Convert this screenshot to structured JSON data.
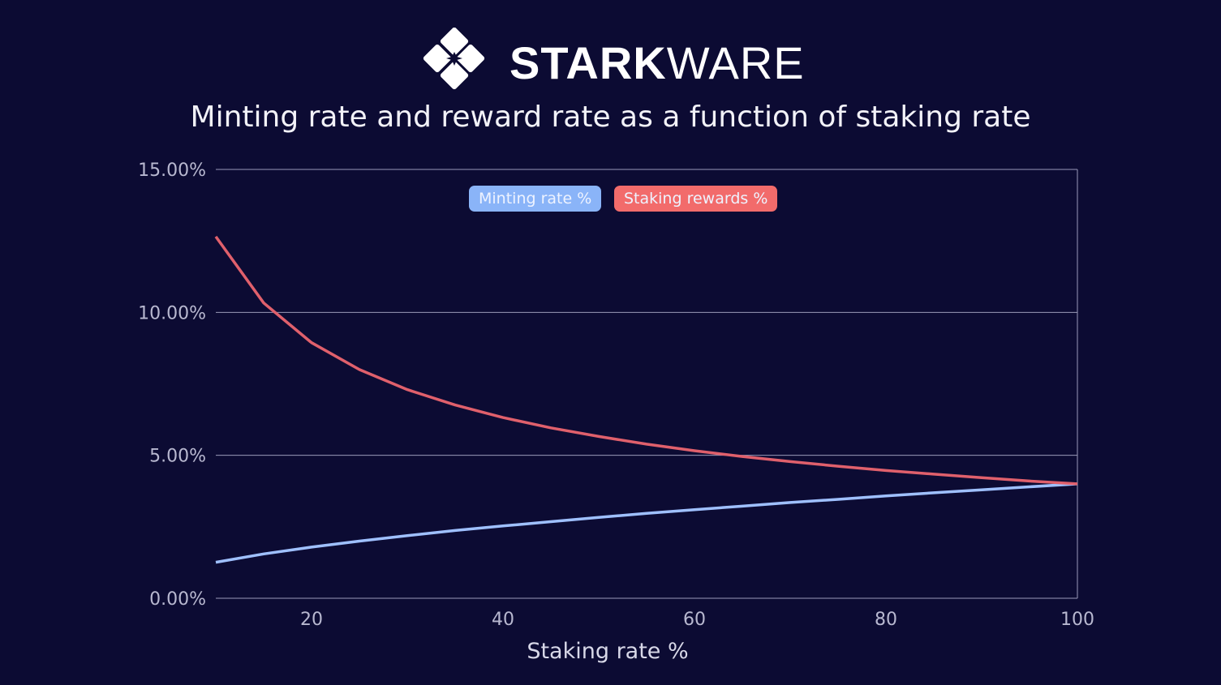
{
  "logo": {
    "bold": "STARK",
    "light": "WARE"
  },
  "chart_data": {
    "type": "line",
    "title": "Minting rate and reward rate as a function of staking rate",
    "xlabel": "Staking rate %",
    "ylabel": "",
    "xlim": [
      10,
      100
    ],
    "ylim": [
      0,
      15
    ],
    "xticks": [
      20,
      40,
      60,
      80,
      100
    ],
    "yticks": [
      0,
      5,
      10,
      15
    ],
    "ytick_labels": [
      "0.00%",
      "5.00%",
      "10.00%",
      "15.00%"
    ],
    "grid": "horizontal",
    "legend_placement": "top-center",
    "x": [
      10,
      15,
      20,
      25,
      30,
      35,
      40,
      45,
      50,
      55,
      60,
      65,
      70,
      75,
      80,
      85,
      90,
      95,
      100
    ],
    "series": [
      {
        "name": "Minting rate %",
        "color": "#9fc0ff",
        "legend_color": "#8ab4f8",
        "values": [
          1.26,
          1.55,
          1.79,
          2.0,
          2.19,
          2.37,
          2.53,
          2.68,
          2.83,
          2.97,
          3.1,
          3.22,
          3.35,
          3.46,
          3.58,
          3.69,
          3.79,
          3.9,
          4.0
        ]
      },
      {
        "name": "Staking rewards %",
        "color": "#e0606c",
        "legend_color": "#f26b6b",
        "values": [
          12.65,
          10.33,
          8.94,
          8.0,
          7.3,
          6.76,
          6.32,
          5.96,
          5.66,
          5.39,
          5.16,
          4.96,
          4.78,
          4.62,
          4.47,
          4.34,
          4.22,
          4.1,
          4.0
        ]
      }
    ]
  }
}
